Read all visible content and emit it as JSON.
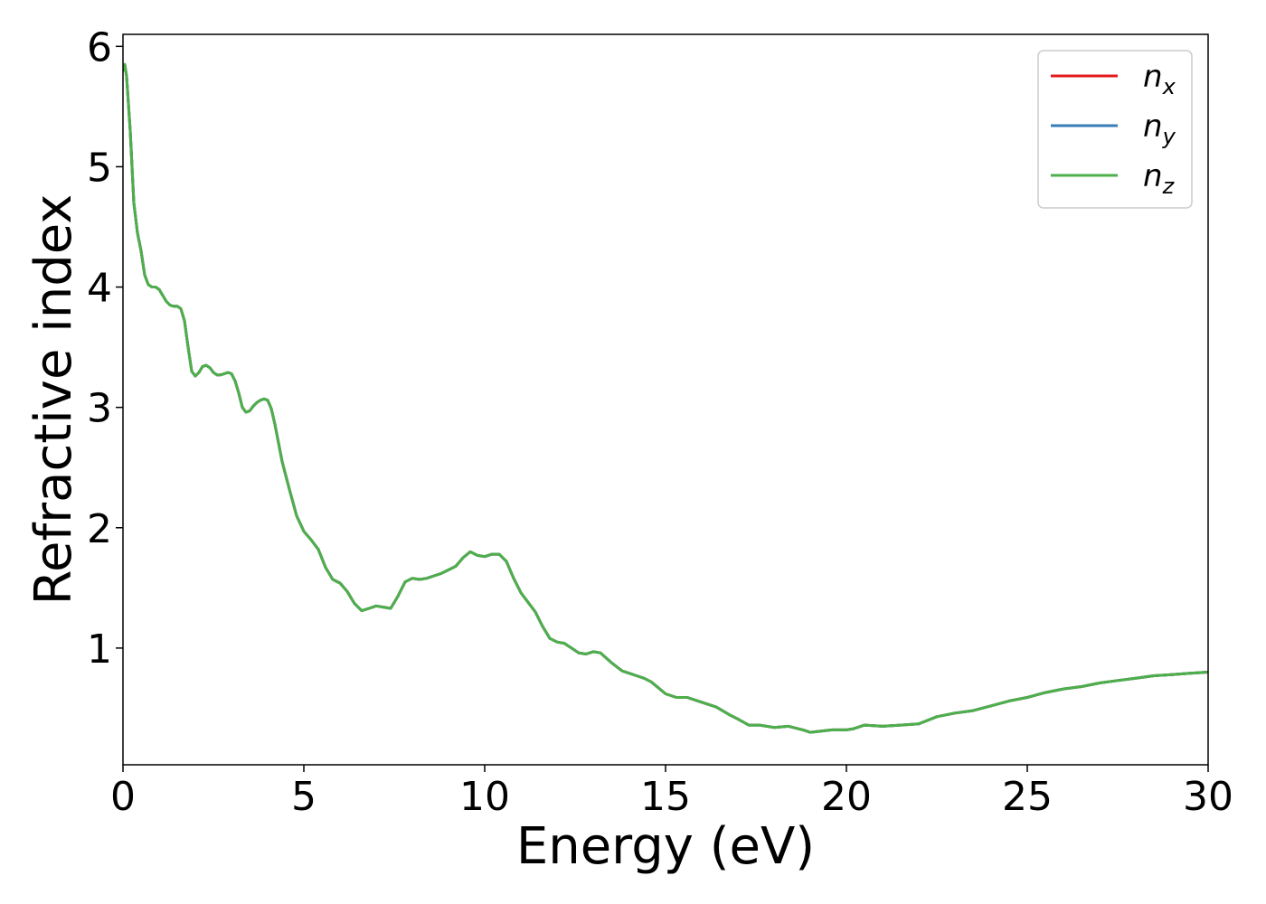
{
  "chart_data": {
    "type": "line",
    "xlabel": "Energy (eV)",
    "ylabel": "Refractive index",
    "xlim": [
      0,
      30
    ],
    "ylim": [
      0.03,
      6.1
    ],
    "xticks": [
      0,
      5,
      10,
      15,
      20,
      25,
      30
    ],
    "xtick_labels": [
      "0",
      "5",
      "10",
      "15",
      "20",
      "25",
      "30"
    ],
    "yticks": [
      1,
      2,
      3,
      4,
      5,
      6
    ],
    "ytick_labels": [
      "1",
      "2",
      "3",
      "4",
      "5",
      "6"
    ],
    "grid": false,
    "legend_position": "top-right",
    "x": [
      0.0,
      0.05,
      0.1,
      0.2,
      0.3,
      0.4,
      0.5,
      0.6,
      0.7,
      0.8,
      0.9,
      1.0,
      1.1,
      1.2,
      1.3,
      1.4,
      1.5,
      1.6,
      1.7,
      1.8,
      1.9,
      2.0,
      2.1,
      2.2,
      2.3,
      2.4,
      2.5,
      2.6,
      2.7,
      2.8,
      2.9,
      3.0,
      3.1,
      3.2,
      3.3,
      3.4,
      3.5,
      3.6,
      3.7,
      3.8,
      3.9,
      4.0,
      4.1,
      4.2,
      4.4,
      4.6,
      4.8,
      5.0,
      5.2,
      5.4,
      5.6,
      5.8,
      6.0,
      6.2,
      6.4,
      6.6,
      6.8,
      7.0,
      7.2,
      7.4,
      7.6,
      7.8,
      8.0,
      8.2,
      8.4,
      8.6,
      8.8,
      9.0,
      9.2,
      9.4,
      9.6,
      9.8,
      10.0,
      10.2,
      10.4,
      10.6,
      10.8,
      11.0,
      11.2,
      11.4,
      11.6,
      11.8,
      12.0,
      12.2,
      12.4,
      12.6,
      12.8,
      13.0,
      13.2,
      13.5,
      13.8,
      14.0,
      14.2,
      14.4,
      14.6,
      14.8,
      15.0,
      15.3,
      15.6,
      16.0,
      16.4,
      16.8,
      17.0,
      17.3,
      17.6,
      18.0,
      18.4,
      18.8,
      19.0,
      19.3,
      19.6,
      20.0,
      20.2,
      20.5,
      21.0,
      21.5,
      22.0,
      22.5,
      23.0,
      23.5,
      24.0,
      24.5,
      25.0,
      25.5,
      26.0,
      26.5,
      27.0,
      27.5,
      28.0,
      28.5,
      29.0,
      29.5,
      30.0
    ],
    "series": [
      {
        "name": "n_x",
        "label_base": "n",
        "label_sub": "x",
        "color": "#e41a1c",
        "values": [
          5.8,
          5.85,
          5.75,
          5.3,
          4.7,
          4.45,
          4.3,
          4.1,
          4.02,
          4.0,
          4.0,
          3.98,
          3.93,
          3.88,
          3.85,
          3.84,
          3.84,
          3.82,
          3.72,
          3.5,
          3.3,
          3.26,
          3.29,
          3.34,
          3.35,
          3.33,
          3.29,
          3.27,
          3.27,
          3.28,
          3.29,
          3.28,
          3.22,
          3.12,
          3.0,
          2.96,
          2.97,
          3.01,
          3.04,
          3.06,
          3.07,
          3.06,
          2.99,
          2.86,
          2.55,
          2.32,
          2.1,
          1.97,
          1.9,
          1.82,
          1.67,
          1.57,
          1.54,
          1.47,
          1.37,
          1.31,
          1.33,
          1.35,
          1.34,
          1.33,
          1.43,
          1.55,
          1.58,
          1.57,
          1.58,
          1.6,
          1.62,
          1.65,
          1.68,
          1.75,
          1.8,
          1.77,
          1.76,
          1.78,
          1.78,
          1.72,
          1.58,
          1.46,
          1.38,
          1.3,
          1.18,
          1.08,
          1.05,
          1.04,
          1.0,
          0.96,
          0.95,
          0.97,
          0.96,
          0.88,
          0.81,
          0.79,
          0.77,
          0.75,
          0.72,
          0.67,
          0.62,
          0.59,
          0.59,
          0.55,
          0.51,
          0.44,
          0.41,
          0.36,
          0.36,
          0.34,
          0.35,
          0.32,
          0.3,
          0.31,
          0.32,
          0.32,
          0.33,
          0.36,
          0.35,
          0.36,
          0.37,
          0.43,
          0.46,
          0.48,
          0.52,
          0.56,
          0.59,
          0.63,
          0.66,
          0.68,
          0.71,
          0.73,
          0.75,
          0.77,
          0.78,
          0.79,
          0.8
        ]
      },
      {
        "name": "n_y",
        "label_base": "n",
        "label_sub": "y",
        "color": "#377eb8",
        "values": [
          5.8,
          5.85,
          5.75,
          5.3,
          4.7,
          4.45,
          4.3,
          4.1,
          4.02,
          4.0,
          4.0,
          3.98,
          3.93,
          3.88,
          3.85,
          3.84,
          3.84,
          3.82,
          3.72,
          3.5,
          3.3,
          3.26,
          3.29,
          3.34,
          3.35,
          3.33,
          3.29,
          3.27,
          3.27,
          3.28,
          3.29,
          3.28,
          3.22,
          3.12,
          3.0,
          2.96,
          2.97,
          3.01,
          3.04,
          3.06,
          3.07,
          3.06,
          2.99,
          2.86,
          2.55,
          2.32,
          2.1,
          1.97,
          1.9,
          1.82,
          1.67,
          1.57,
          1.54,
          1.47,
          1.37,
          1.31,
          1.33,
          1.35,
          1.34,
          1.33,
          1.43,
          1.55,
          1.58,
          1.57,
          1.58,
          1.6,
          1.62,
          1.65,
          1.68,
          1.75,
          1.8,
          1.77,
          1.76,
          1.78,
          1.78,
          1.72,
          1.58,
          1.46,
          1.38,
          1.3,
          1.18,
          1.08,
          1.05,
          1.04,
          1.0,
          0.96,
          0.95,
          0.97,
          0.96,
          0.88,
          0.81,
          0.79,
          0.77,
          0.75,
          0.72,
          0.67,
          0.62,
          0.59,
          0.59,
          0.55,
          0.51,
          0.44,
          0.41,
          0.36,
          0.36,
          0.34,
          0.35,
          0.32,
          0.3,
          0.31,
          0.32,
          0.32,
          0.33,
          0.36,
          0.35,
          0.36,
          0.37,
          0.43,
          0.46,
          0.48,
          0.52,
          0.56,
          0.59,
          0.63,
          0.66,
          0.68,
          0.71,
          0.73,
          0.75,
          0.77,
          0.78,
          0.79,
          0.8
        ]
      },
      {
        "name": "n_z",
        "label_base": "n",
        "label_sub": "z",
        "color": "#4daf4a",
        "values": [
          5.8,
          5.85,
          5.75,
          5.3,
          4.7,
          4.45,
          4.3,
          4.1,
          4.02,
          4.0,
          4.0,
          3.98,
          3.93,
          3.88,
          3.85,
          3.84,
          3.84,
          3.82,
          3.72,
          3.5,
          3.3,
          3.26,
          3.29,
          3.34,
          3.35,
          3.33,
          3.29,
          3.27,
          3.27,
          3.28,
          3.29,
          3.28,
          3.22,
          3.12,
          3.0,
          2.96,
          2.97,
          3.01,
          3.04,
          3.06,
          3.07,
          3.06,
          2.99,
          2.86,
          2.55,
          2.32,
          2.1,
          1.97,
          1.9,
          1.82,
          1.67,
          1.57,
          1.54,
          1.47,
          1.37,
          1.31,
          1.33,
          1.35,
          1.34,
          1.33,
          1.43,
          1.55,
          1.58,
          1.57,
          1.58,
          1.6,
          1.62,
          1.65,
          1.68,
          1.75,
          1.8,
          1.77,
          1.76,
          1.78,
          1.78,
          1.72,
          1.58,
          1.46,
          1.38,
          1.3,
          1.18,
          1.08,
          1.05,
          1.04,
          1.0,
          0.96,
          0.95,
          0.97,
          0.96,
          0.88,
          0.81,
          0.79,
          0.77,
          0.75,
          0.72,
          0.67,
          0.62,
          0.59,
          0.59,
          0.55,
          0.51,
          0.44,
          0.41,
          0.36,
          0.36,
          0.34,
          0.35,
          0.32,
          0.3,
          0.31,
          0.32,
          0.32,
          0.33,
          0.36,
          0.35,
          0.36,
          0.37,
          0.43,
          0.46,
          0.48,
          0.52,
          0.56,
          0.59,
          0.63,
          0.66,
          0.68,
          0.71,
          0.73,
          0.75,
          0.77,
          0.78,
          0.79,
          0.8
        ]
      }
    ]
  }
}
